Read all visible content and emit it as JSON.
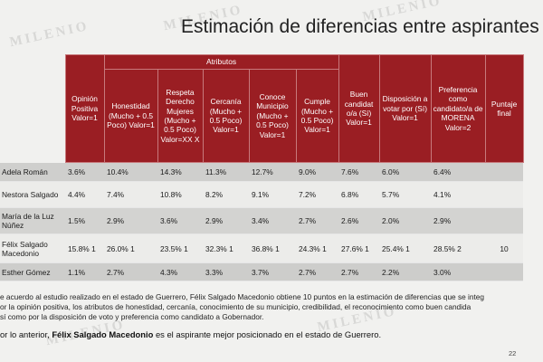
{
  "title": "Estimación de diferencias entre aspirantes",
  "watermark": "MILENIO",
  "table": {
    "group_header": "Atributos",
    "headers": {
      "opinion": "Opinión Positiva Valor=1",
      "honestidad": "Honestidad (Mucho + 0.5 Poco) Valor=1",
      "respeta": "Respeta Derecho Mujeres (Mucho + 0.5 Poco) Valor=XX X",
      "cercania": "Cercanía (Mucho + 0.5 Poco) Valor=1",
      "conoce": "Conoce Municipio (Mucho + 0.5 Poco) Valor=1",
      "cumple": "Cumple (Mucho + 0.5 Poco) Valor=1",
      "buen": "Buen candidat o/a (Sí) Valor=1",
      "disposicion": "Disposición a votar por (Sí) Valor=1",
      "preferencia": "Preferencia como candidato/a de MORENA Valor=2",
      "puntaje": "Puntaje final"
    },
    "rows": [
      {
        "name": "Adela Román",
        "opinion": "3.6%",
        "honestidad": "10.4%",
        "respeta": "14.3%",
        "cercania": "11.3%",
        "conoce": "12.7%",
        "cumple": "9.0%",
        "buen": "7.6%",
        "disposicion": "6.0%",
        "preferencia": "6.4%",
        "puntaje": ""
      },
      {
        "name": "Nestora Salgado",
        "opinion": "4.4%",
        "honestidad": "7.4%",
        "respeta": "10.8%",
        "cercania": "8.2%",
        "conoce": "9.1%",
        "cumple": "7.2%",
        "buen": "6.8%",
        "disposicion": "5.7%",
        "preferencia": "4.1%",
        "puntaje": ""
      },
      {
        "name": "María de la Luz Núñez",
        "opinion": "1.5%",
        "honestidad": "2.9%",
        "respeta": "3.6%",
        "cercania": "2.9%",
        "conoce": "3.4%",
        "cumple": "2.7%",
        "buen": "2.6%",
        "disposicion": "2.0%",
        "preferencia": "2.9%",
        "puntaje": ""
      },
      {
        "name": "Félix Salgado Macedonio",
        "opinion": "15.8% 1",
        "honestidad": "26.0% 1",
        "respeta": "23.5% 1",
        "cercania": "32.3% 1",
        "conoce": "36.8% 1",
        "cumple": "24.3% 1",
        "buen": "27.6% 1",
        "disposicion": "25.4% 1",
        "preferencia": "28.5% 2",
        "puntaje": "10"
      },
      {
        "name": "Esther Gómez",
        "opinion": "1.1%",
        "honestidad": "2.7%",
        "respeta": "4.3%",
        "cercania": "3.3%",
        "conoce": "3.7%",
        "cumple": "2.7%",
        "buen": "2.7%",
        "disposicion": "2.2%",
        "preferencia": "3.0%",
        "puntaje": ""
      }
    ]
  },
  "notes": [
    "e acuerdo al estudio realizado en el estado de Guerrero, Félix Salgado Macedonio obtiene 10 puntos en la estimación de diferencias que se integ",
    "or la opinión positiva, los atributos de honestidad, cercanía, conocimiento de su municipio, credibilidad, el reconocimiento como buen candida",
    "sí como por la disposición de voto y preferencia como candidato a Gobernador."
  ],
  "conclusion": {
    "prefix": "or lo anterior, ",
    "name": "Félix Salgado Macedonio",
    "suffix": " es el aspirante mejor posicionado en el estado de Guerrero."
  },
  "page_number": "22"
}
